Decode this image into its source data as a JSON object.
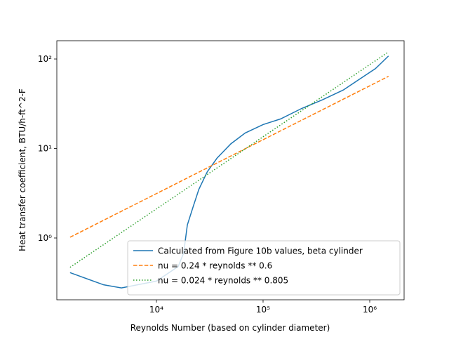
{
  "chart_data": {
    "type": "line",
    "xlabel": "Reynolds Number (based on cylinder diameter)",
    "ylabel": "Heat transfer coefficient, BTU/h-ft^2-F",
    "xscale": "log",
    "yscale": "log",
    "xlim": [
      1165,
      2100000
    ],
    "ylim": [
      0.204,
      160
    ],
    "xticks": [
      {
        "value": 10000,
        "label": "10⁴"
      },
      {
        "value": 100000,
        "label": "10⁵"
      },
      {
        "value": 1000000,
        "label": "10⁶"
      }
    ],
    "yticks": [
      {
        "value": 1,
        "label": "10⁰"
      },
      {
        "value": 10,
        "label": "10¹"
      },
      {
        "value": 100,
        "label": "10²"
      }
    ],
    "legend": "lower right",
    "series": [
      {
        "name": "Calculated from Figure 10b values, beta cylinder",
        "color": "#1f77b4",
        "dash": "solid",
        "x": [
          1550,
          3200,
          4700,
          10000,
          16000,
          18000,
          19500,
          22000,
          25000,
          30000,
          37000,
          50000,
          68000,
          100000,
          146000,
          230000,
          360000,
          565000,
          760000,
          1130000,
          1500000
        ],
        "values": [
          0.41,
          0.3,
          0.277,
          0.33,
          0.48,
          0.68,
          1.4,
          2.2,
          3.5,
          5.5,
          7.8,
          11.3,
          14.9,
          18.5,
          21.4,
          28,
          35,
          45,
          57,
          78,
          108
        ]
      },
      {
        "name": "nu = 0.24 * reynolds ** 0.6",
        "color": "#ff7f0e",
        "dash": "dashed",
        "x": [
          1550,
          1500000
        ],
        "values": [
          1.02,
          64
        ]
      },
      {
        "name": "nu = 0.024 * reynolds ** 0.805",
        "color": "#2ca02c",
        "dash": "dotted",
        "x": [
          1550,
          1500000
        ],
        "values": [
          0.47,
          120
        ]
      }
    ]
  }
}
